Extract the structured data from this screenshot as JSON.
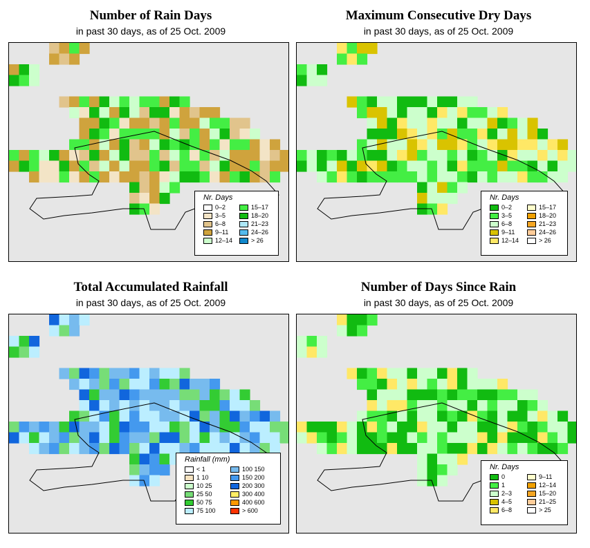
{
  "panels": [
    {
      "title": "Number of Rain Days",
      "subtitle": "in past 30 days, as of  25 Oct. 2009",
      "scheme": "rain",
      "legend": {
        "title": "Nr. Days",
        "items": [
          {
            "label": "0–2",
            "color": "#ffffff"
          },
          {
            "label": "3–5",
            "color": "#f3e4c6"
          },
          {
            "label": "6–8",
            "color": "#e1c48c"
          },
          {
            "label": "9–11",
            "color": "#cfa33d"
          },
          {
            "label": "12–14",
            "color": "#ccffcc"
          },
          {
            "label": "15–17",
            "color": "#44ee44"
          },
          {
            "label": "18–20",
            "color": "#11bb11"
          },
          {
            "label": "21–23",
            "color": "#aee8f8"
          },
          {
            "label": "24–26",
            "color": "#55bbee"
          },
          {
            "label": "> 26",
            "color": "#1188cc"
          }
        ]
      }
    },
    {
      "title": "Maximum Consecutive Dry Days",
      "subtitle": "in past 30 days, as of  25 Oct. 2009",
      "scheme": "dry",
      "legend": {
        "title": "Nr. Days",
        "items": [
          {
            "label": "0–2",
            "color": "#11bb11"
          },
          {
            "label": "3–5",
            "color": "#44ee44"
          },
          {
            "label": "6–8",
            "color": "#ccffcc"
          },
          {
            "label": "9–11",
            "color": "#d9c300"
          },
          {
            "label": "12–14",
            "color": "#ffe866"
          },
          {
            "label": "15–17",
            "color": "#ffffcc"
          },
          {
            "label": "18–20",
            "color": "#f0a000"
          },
          {
            "label": "21–23",
            "color": "#f5a623"
          },
          {
            "label": "24–26",
            "color": "#ffcc99"
          },
          {
            "label": "> 26",
            "color": "#ffffff"
          }
        ]
      }
    },
    {
      "title": "Total Accumulated Rainfall",
      "subtitle": "in past 30 days, as of  25 Oct. 2009",
      "scheme": "total",
      "legend": {
        "title": "Rainfall (mm)",
        "items": [
          {
            "label": "< 1",
            "color": "#ffffff"
          },
          {
            "label": "1    10",
            "color": "#f7e3c0"
          },
          {
            "label": "10    25",
            "color": "#ccffcc"
          },
          {
            "label": "25    50",
            "color": "#77dd77"
          },
          {
            "label": "50    75",
            "color": "#33cc33"
          },
          {
            "label": "75   100",
            "color": "#bbeeff"
          },
          {
            "label": "100   150",
            "color": "#77bbee"
          },
          {
            "label": "150   200",
            "color": "#4499ee"
          },
          {
            "label": "200   300",
            "color": "#1166dd"
          },
          {
            "label": "300   400",
            "color": "#ffee66"
          },
          {
            "label": "400   600",
            "color": "#ff9900"
          },
          {
            "label": "> 600",
            "color": "#ff3300"
          }
        ]
      }
    },
    {
      "title": "Number of Days Since Rain",
      "subtitle": "in past 30 days, as of  25 Oct. 2009",
      "scheme": "since",
      "legend": {
        "title": "Nr. Days",
        "items": [
          {
            "label": "0",
            "color": "#11bb11"
          },
          {
            "label": "1",
            "color": "#44ee44"
          },
          {
            "label": "2–3",
            "color": "#ccffcc"
          },
          {
            "label": "4–5",
            "color": "#d9c300"
          },
          {
            "label": "6–8",
            "color": "#ffe866"
          },
          {
            "label": "9–11",
            "color": "#ffffcc"
          },
          {
            "label": "12–14",
            "color": "#f0a000"
          },
          {
            "label": "15–20",
            "color": "#f5a623"
          },
          {
            "label": "21–25",
            "color": "#ffcc99"
          },
          {
            "label": "> 25",
            "color": "#ffffff"
          }
        ]
      }
    }
  ]
}
